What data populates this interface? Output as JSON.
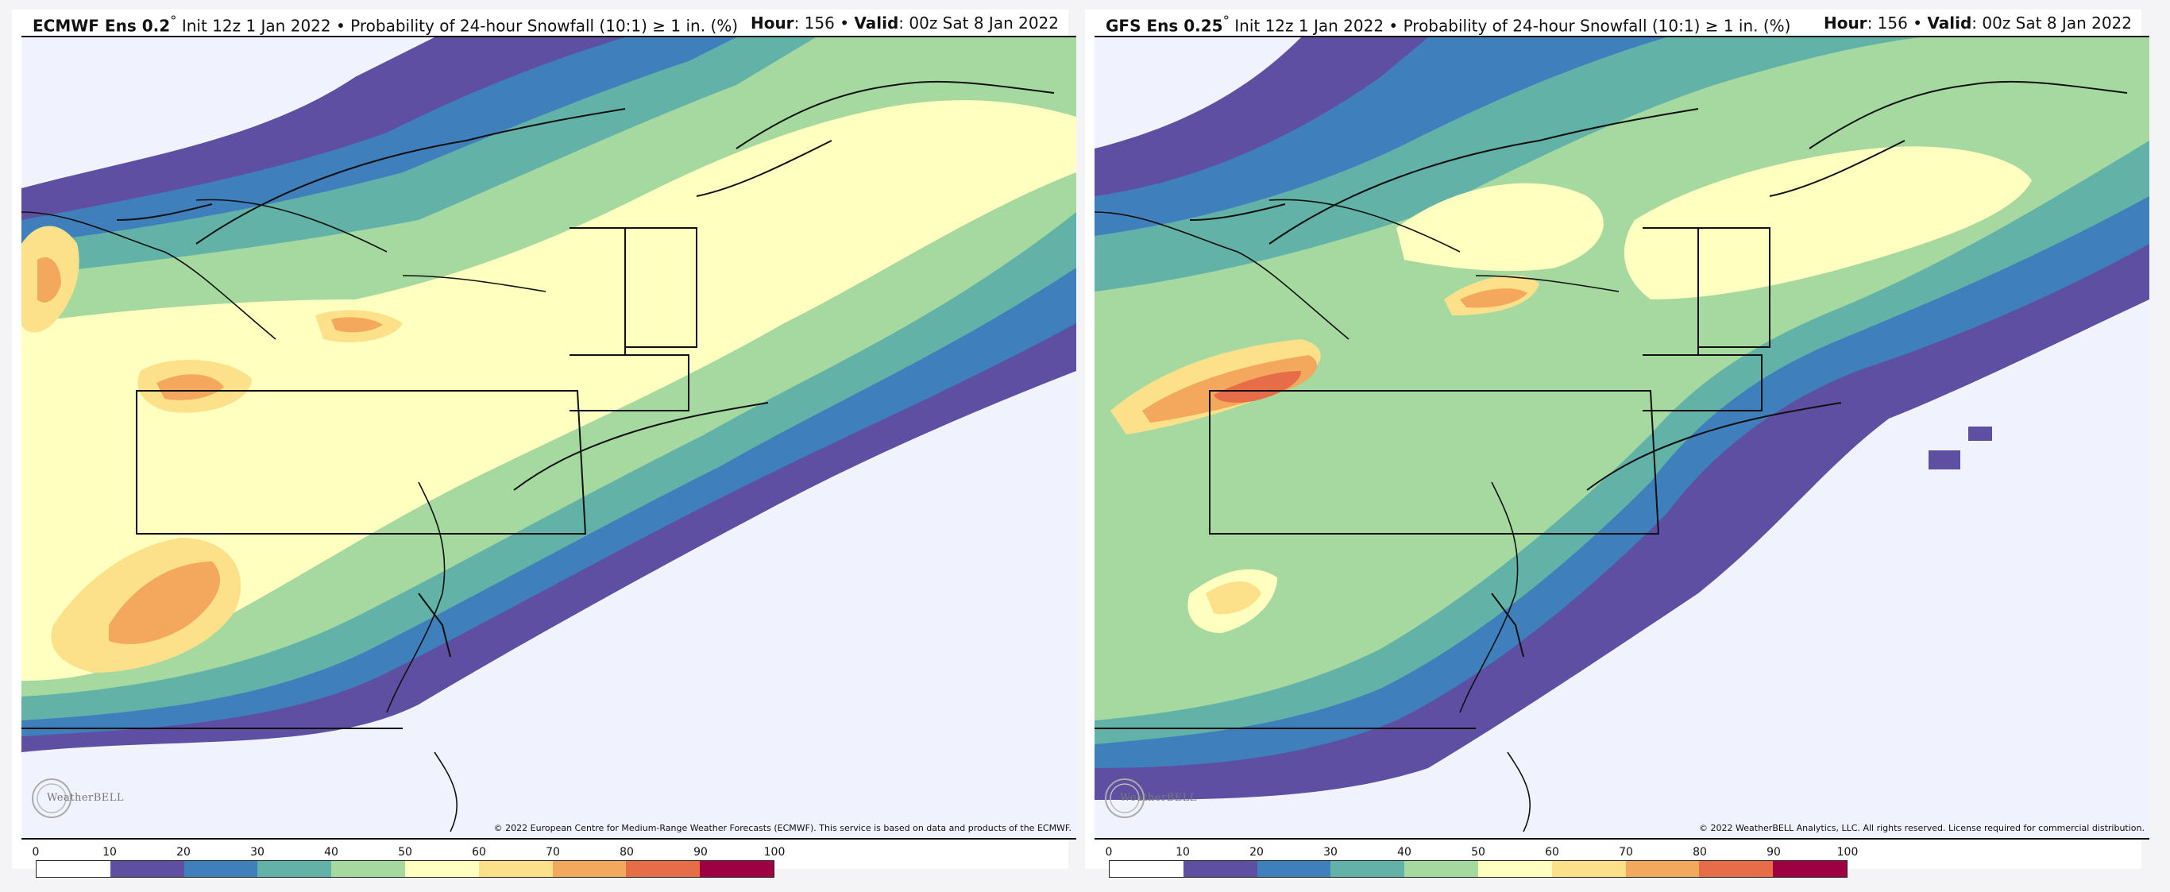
{
  "panels": [
    {
      "model_label": "ECMWF Ens 0.2",
      "degree_symbol": "°",
      "init_text": "Init 12z 1 Jan 2022",
      "bullet": "•",
      "product_text": "Probability of 24-hour Snowfall (10:1) ≥ 1 in. (%)",
      "hour_label": "Hour",
      "hour_value": ": 156",
      "valid_label": "Valid",
      "valid_value": ": 00z Sat 8 Jan 2022",
      "copyright": "© 2022 European Centre for Medium-Range Weather Forecasts (ECMWF). This service is based on data and products of the ECMWF.",
      "logo_text": "WeatherBELL"
    },
    {
      "model_label": "GFS Ens 0.25",
      "degree_symbol": "°",
      "init_text": "Init 12z 1 Jan 2022",
      "bullet": "•",
      "product_text": "Probability of 24-hour Snowfall (10:1) ≥ 1 in. (%)",
      "hour_label": "Hour",
      "hour_value": ": 156",
      "valid_label": "Valid",
      "valid_value": ": 00z Sat 8 Jan 2022",
      "copyright": "© 2022 WeatherBELL Analytics, LLC. All rights reserved. License required for commercial distribution.",
      "logo_text": "WeatherBELL"
    }
  ],
  "colorbar": {
    "ticks": [
      "0",
      "10",
      "20",
      "30",
      "40",
      "50",
      "60",
      "70",
      "80",
      "90",
      "100"
    ],
    "colors": [
      "#ffffff",
      "#5e4fa2",
      "#3f7fbb",
      "#63b2a8",
      "#a6d9a0",
      "#ffffbf",
      "#fde18a",
      "#f4a85e",
      "#e76d49",
      "#9e0142"
    ]
  },
  "colors": {
    "background": "#f0f2fe",
    "p10": "#5e4fa2",
    "p20": "#3f7fbb",
    "p30": "#63b2a8",
    "p40": "#a6d9a0",
    "p50": "#ffffbf",
    "p60": "#fde18a",
    "p70": "#f4a85e",
    "p80": "#e76d49"
  }
}
